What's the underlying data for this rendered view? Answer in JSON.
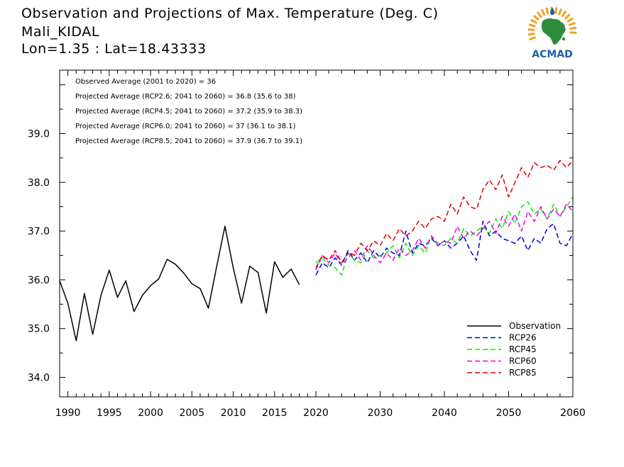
{
  "header": {
    "title_line1": "Observation and Projections of Max. Temperature (Deg. C)",
    "title_line2": "Mali_KIDAL",
    "title_line3": "Lon=1.35 : Lat=18.43333"
  },
  "logo": {
    "text": "ACMAD",
    "icon": "africa-map-sun-logo"
  },
  "colors": {
    "observation": "#000000",
    "rcp26": "#0000dd",
    "rcp45": "#00ee00",
    "rcp60": "#ee00ee",
    "rcp85": "#dd0000",
    "logo_text": "#1f5fa8",
    "logo_map": "#2e8b3d",
    "logo_sun": "#f0a020"
  },
  "chart_data": {
    "type": "line",
    "xlim": [
      1989,
      2060
    ],
    "ylim": [
      33.6,
      40.3
    ],
    "xticks": [
      1990,
      1995,
      2000,
      2005,
      2010,
      2015,
      2020,
      2030,
      2040,
      2050,
      2060
    ],
    "yticks": [
      34.0,
      35.0,
      36.0,
      37.0,
      38.0,
      39.0
    ],
    "ytick_labels": [
      "34.0",
      "35.0",
      "36.0",
      "37.0",
      "38.0",
      "39.0"
    ],
    "grid": false,
    "legend_position": "bottom-right",
    "annotations": [
      "Observed Average (2001 to 2020) = 36",
      "Projected Average (RCP2.6; 2041 to 2060) = 36.8 (35.6 to 38)",
      "Projected Average (RCP4.5; 2041 to 2060) = 37.2 (35.9 to 38.3)",
      "Projected Average (RCP6.0; 2041 to 2060) = 37 (36.1 to 38.1)",
      "Projected Average (RCP8.5; 2041 to 2060) = 37.9 (36.7 to 39.1)"
    ],
    "series": [
      {
        "name": "Observation",
        "style": "solid",
        "x": [
          1989,
          1990,
          1991,
          1992,
          1993,
          1994,
          1995,
          1996,
          1997,
          1998,
          1999,
          2000,
          2001,
          2002,
          2003,
          2004,
          2005,
          2006,
          2007,
          2008,
          2009,
          2010,
          2011,
          2012,
          2013,
          2014,
          2015,
          2016,
          2017,
          2018,
          2019
        ],
        "y": [
          35.98,
          35.52,
          34.75,
          35.72,
          34.88,
          35.68,
          36.2,
          35.64,
          35.98,
          35.35,
          35.68,
          35.88,
          36.02,
          36.42,
          36.32,
          36.14,
          35.92,
          35.82,
          35.42,
          36.28,
          37.1,
          36.25,
          35.52,
          36.28,
          36.15,
          35.32,
          36.37,
          36.05,
          36.22,
          35.9,
          null
        ]
      },
      {
        "name": "RCP26",
        "style": "dashed",
        "x": [
          2020,
          2021,
          2022,
          2023,
          2024,
          2025,
          2026,
          2027,
          2028,
          2029,
          2030,
          2031,
          2032,
          2033,
          2034,
          2035,
          2036,
          2037,
          2038,
          2039,
          2040,
          2041,
          2042,
          2043,
          2044,
          2045,
          2046,
          2047,
          2048,
          2049,
          2050,
          2051,
          2052,
          2053,
          2054,
          2055,
          2056,
          2057,
          2058,
          2059,
          2060
        ],
        "y": [
          36.1,
          36.35,
          36.25,
          36.45,
          36.3,
          36.6,
          36.4,
          36.55,
          36.35,
          36.6,
          36.45,
          36.65,
          36.55,
          36.5,
          37.0,
          36.55,
          36.75,
          36.7,
          36.85,
          36.7,
          36.8,
          36.65,
          36.75,
          36.9,
          36.6,
          36.4,
          37.2,
          36.9,
          37.0,
          36.85,
          36.8,
          36.75,
          36.9,
          36.6,
          36.85,
          36.75,
          37.05,
          37.15,
          36.75,
          36.7,
          36.95
        ]
      },
      {
        "name": "RCP45",
        "style": "dashed",
        "x": [
          2020,
          2021,
          2022,
          2023,
          2024,
          2025,
          2026,
          2027,
          2028,
          2029,
          2030,
          2031,
          2032,
          2033,
          2034,
          2035,
          2036,
          2037,
          2038,
          2039,
          2040,
          2041,
          2042,
          2043,
          2044,
          2045,
          2046,
          2047,
          2048,
          2049,
          2050,
          2051,
          2052,
          2053,
          2054,
          2055,
          2056,
          2057,
          2058,
          2059,
          2060
        ],
        "y": [
          36.35,
          36.45,
          36.3,
          36.25,
          36.1,
          36.55,
          36.4,
          36.35,
          36.6,
          36.45,
          36.5,
          36.55,
          36.7,
          36.45,
          36.75,
          36.5,
          36.7,
          36.55,
          36.9,
          36.75,
          36.7,
          36.85,
          36.75,
          37.05,
          36.9,
          37.0,
          37.1,
          36.95,
          37.25,
          37.05,
          37.4,
          37.15,
          37.5,
          37.6,
          37.35,
          37.45,
          37.25,
          37.55,
          37.3,
          37.5,
          37.7
        ]
      },
      {
        "name": "RCP60",
        "style": "dashed",
        "x": [
          2020,
          2021,
          2022,
          2023,
          2024,
          2025,
          2026,
          2027,
          2028,
          2029,
          2030,
          2031,
          2032,
          2033,
          2034,
          2035,
          2036,
          2037,
          2038,
          2039,
          2040,
          2041,
          2042,
          2043,
          2044,
          2045,
          2046,
          2047,
          2048,
          2049,
          2050,
          2051,
          2052,
          2053,
          2054,
          2055,
          2056,
          2057,
          2058,
          2059,
          2060
        ],
        "y": [
          36.2,
          36.5,
          36.35,
          36.55,
          36.3,
          36.45,
          36.6,
          36.4,
          36.7,
          36.5,
          36.35,
          36.55,
          36.4,
          36.65,
          36.5,
          36.6,
          36.85,
          36.65,
          36.9,
          36.7,
          36.8,
          36.75,
          37.1,
          36.85,
          37.0,
          36.9,
          37.05,
          37.2,
          36.95,
          37.3,
          37.1,
          37.35,
          37.0,
          37.4,
          37.2,
          37.5,
          37.25,
          37.45,
          37.3,
          37.55,
          37.4
        ]
      },
      {
        "name": "RCP85",
        "style": "dashed",
        "x": [
          2020,
          2021,
          2022,
          2023,
          2024,
          2025,
          2026,
          2027,
          2028,
          2029,
          2030,
          2031,
          2032,
          2033,
          2034,
          2035,
          2036,
          2037,
          2038,
          2039,
          2040,
          2041,
          2042,
          2043,
          2044,
          2045,
          2046,
          2047,
          2048,
          2049,
          2050,
          2051,
          2052,
          2053,
          2054,
          2055,
          2056,
          2057,
          2058,
          2059,
          2060
        ],
        "y": [
          36.25,
          36.5,
          36.4,
          36.6,
          36.35,
          36.55,
          36.5,
          36.75,
          36.6,
          36.8,
          36.7,
          36.95,
          36.8,
          37.05,
          36.9,
          37.0,
          37.2,
          37.05,
          37.25,
          37.3,
          37.2,
          37.55,
          37.35,
          37.7,
          37.5,
          37.45,
          37.85,
          38.05,
          37.85,
          38.15,
          37.7,
          38.0,
          38.3,
          38.1,
          38.4,
          38.3,
          38.35,
          38.25,
          38.45,
          38.3,
          38.45
        ]
      }
    ]
  }
}
